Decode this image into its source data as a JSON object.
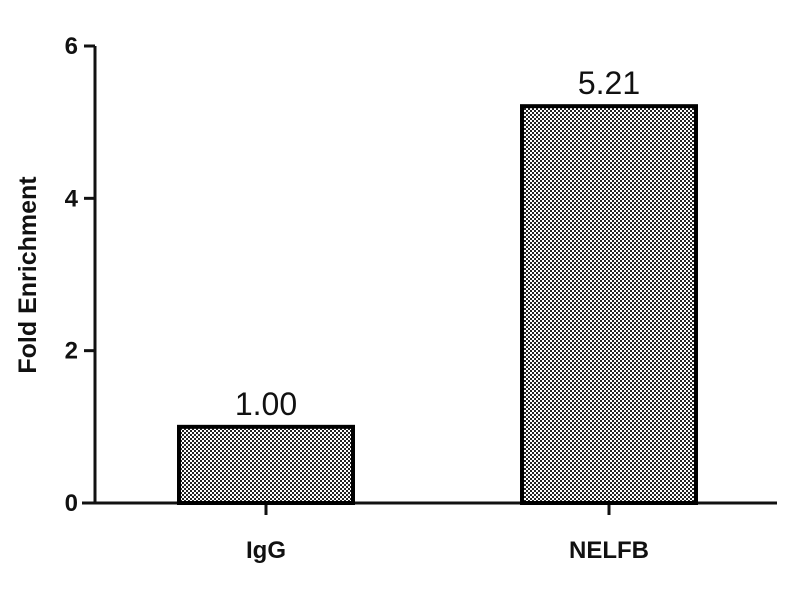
{
  "chart_data": {
    "type": "bar",
    "title": "",
    "xlabel": "",
    "ylabel": "Fold Enrichment",
    "categories": [
      "IgG",
      "NELFB"
    ],
    "values": [
      1.0,
      5.21
    ],
    "data_labels": [
      "1.00",
      "5.21"
    ],
    "ylim": [
      0,
      6
    ],
    "yticks": [
      0,
      2,
      4,
      6
    ],
    "grid": false,
    "legend": "none",
    "bar_fill": "checkered gray pattern",
    "colors": {
      "bar_edge": "#000000",
      "bar_dark": "#222222",
      "bar_light": "#ffffff"
    }
  }
}
